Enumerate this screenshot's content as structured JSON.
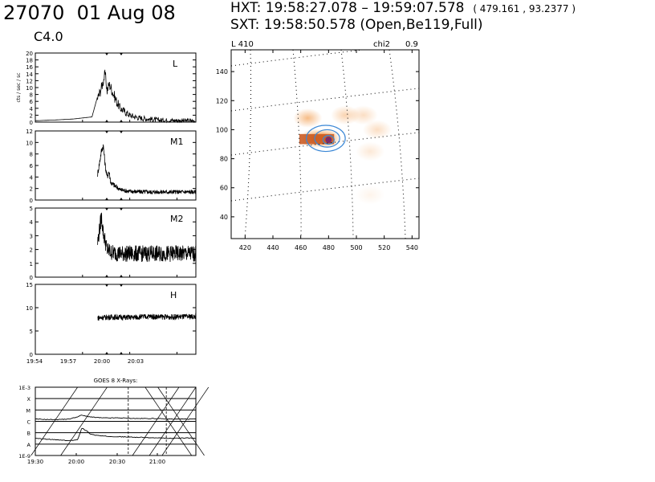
{
  "header": {
    "flare_number": "27070",
    "date": "01 Aug 08",
    "goes_class": "C4.0",
    "hxt_label": "HXT:",
    "hxt_interval": "19:58:27.078 – 19:59:07.578",
    "hxt_position": "( 479.161 , 93.2377 )",
    "sxt_label": "SXT:",
    "sxt_time": "19:58:50.578",
    "sxt_config": "(Open,Be119,Full)"
  },
  "colors": {
    "axis": "#000000",
    "sxt_image": "#f08a2c",
    "hxt_contour": "#3a87d6",
    "grid": "#000000"
  },
  "chart_data": [
    {
      "type": "line",
      "panel": "HXT L",
      "channel": "L",
      "ylabel": "cts / sec / sc",
      "ylim": [
        0,
        20
      ],
      "yticks": [
        "0",
        "2",
        "4",
        "6",
        "8",
        "10",
        "12",
        "14",
        "16",
        "18",
        "20"
      ],
      "xlim_hours": [
        19.9,
        20.07
      ],
      "x_hours": [
        19.9,
        19.92,
        19.94,
        19.95,
        19.96,
        19.965,
        19.967,
        19.97,
        19.972,
        19.974,
        19.976,
        19.978,
        19.98,
        19.983,
        19.986,
        19.99,
        20.0,
        20.01,
        20.03,
        20.07
      ],
      "y": [
        0.4,
        0.6,
        0.9,
        1.2,
        1.5,
        6.5,
        7.5,
        10,
        12,
        14,
        9,
        11,
        10,
        8,
        6,
        4,
        2,
        1.2,
        0.6,
        0.3
      ],
      "grid": false
    },
    {
      "type": "line",
      "panel": "HXT M1",
      "channel": "M1",
      "ylim": [
        0,
        12
      ],
      "yticks": [
        "0",
        "2",
        "4",
        "6",
        "8",
        "10",
        "12"
      ],
      "xlim_hours": [
        19.9,
        20.07
      ],
      "x_hours": [
        19.966,
        19.97,
        19.972,
        19.974,
        19.976,
        19.978,
        19.98,
        19.984,
        19.99,
        20.0,
        20.02,
        20.07
      ],
      "y": [
        4.5,
        8.5,
        9.5,
        6,
        4,
        5,
        3,
        2.5,
        1.8,
        1.5,
        1.4,
        1.4
      ],
      "grid": false
    },
    {
      "type": "line",
      "panel": "HXT M2",
      "channel": "M2",
      "ylim": [
        0,
        5
      ],
      "yticks": [
        "0",
        "1",
        "2",
        "3",
        "4",
        "5"
      ],
      "xlim_hours": [
        19.9,
        20.07
      ],
      "x_hours": [
        19.966,
        19.97,
        19.972,
        19.974,
        19.976,
        19.98,
        19.99,
        20.0,
        20.07
      ],
      "y": [
        2.5,
        4.4,
        3.2,
        2.6,
        2.0,
        1.8,
        1.7,
        1.7,
        1.7
      ],
      "grid": false
    },
    {
      "type": "line",
      "panel": "HXT H",
      "channel": "H",
      "ylim": [
        0,
        15
      ],
      "yticks": [
        "0",
        "5",
        "10",
        "15"
      ],
      "xlim_hours": [
        19.9,
        20.07
      ],
      "x_hours": [
        19.966,
        19.98,
        20.0,
        20.02,
        20.04,
        20.07
      ],
      "y": [
        7.8,
        8.0,
        7.9,
        8.1,
        8.0,
        8.1
      ],
      "xticks": [
        "19:54",
        "19:57",
        "20:00",
        "20:03"
      ],
      "grid": false
    },
    {
      "type": "line",
      "panel": "GOES",
      "title": "GOES 8 X-Rays:",
      "yscale": "log",
      "ytick_labels": [
        "1E-3",
        "X",
        "M",
        "C",
        "B",
        "A",
        "1E-9"
      ],
      "xticks": [
        "19:30",
        "20:00",
        "20:30",
        "21:00"
      ],
      "xlim_hours": [
        19.4,
        21.3
      ],
      "series": [
        {
          "x_hours": [
            19.4,
            19.6,
            19.8,
            19.9,
            19.95,
            20.0,
            20.1,
            20.2,
            20.4,
            20.6,
            20.8,
            21.0,
            21.2,
            21.3
          ],
          "log_flux": [
            -5.8,
            -5.85,
            -5.8,
            -5.6,
            -5.45,
            -5.55,
            -5.65,
            -5.7,
            -5.7,
            -5.75,
            -5.75,
            -5.8,
            -5.8,
            -5.8
          ]
        },
        {
          "x_hours": [
            19.4,
            19.6,
            19.8,
            19.9,
            19.95,
            20.0,
            20.05,
            20.1,
            20.2,
            20.4,
            20.6,
            20.8,
            21.0,
            21.2,
            21.3
          ],
          "log_flux": [
            -7.5,
            -7.6,
            -7.7,
            -7.6,
            -6.6,
            -6.8,
            -7.1,
            -7.2,
            -7.3,
            -7.35,
            -7.4,
            -7.45,
            -7.5,
            -7.45,
            -7.5
          ]
        }
      ],
      "grid": true
    },
    {
      "type": "heatmap",
      "panel": "SXT/HXT image",
      "label": "L  410",
      "chi2_label": "chi2",
      "chi2": "0.9",
      "xlim": [
        410,
        545
      ],
      "ylim": [
        25,
        155
      ],
      "xticks": [
        "420",
        "440",
        "460",
        "480",
        "500",
        "520",
        "540"
      ],
      "yticks": [
        "40",
        "60",
        "80",
        "100",
        "120",
        "140"
      ],
      "sxt_blobs": [
        {
          "x": 470,
          "y": 94,
          "level": 0.9
        },
        {
          "x": 478,
          "y": 94,
          "level": 1.0
        },
        {
          "x": 465,
          "y": 108,
          "level": 0.6
        },
        {
          "x": 492,
          "y": 110,
          "level": 0.4
        },
        {
          "x": 505,
          "y": 110,
          "level": 0.3
        },
        {
          "x": 515,
          "y": 100,
          "level": 0.3
        },
        {
          "x": 510,
          "y": 85,
          "level": 0.2
        },
        {
          "x": 510,
          "y": 55,
          "level": 0.1
        }
      ],
      "hxt_contours": [
        {
          "x": 478,
          "y": 94,
          "rx": 14,
          "ry": 9
        },
        {
          "x": 479,
          "y": 94,
          "rx": 9,
          "ry": 6
        },
        {
          "x": 480,
          "y": 93,
          "rx": 4,
          "ry": 3
        }
      ],
      "grid": true
    }
  ]
}
